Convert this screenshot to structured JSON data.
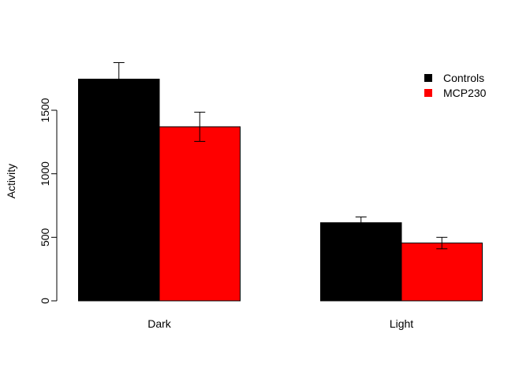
{
  "chart_data": {
    "type": "bar",
    "title": "",
    "xlabel": "",
    "ylabel": "Activity",
    "ylim": [
      0,
      1900
    ],
    "yticks": [
      0,
      500,
      1000,
      1500
    ],
    "categories": [
      "Dark",
      "Light"
    ],
    "series": [
      {
        "name": "Controls",
        "color": "#000000",
        "values": [
          1745,
          615
        ],
        "errors": [
          130,
          45
        ]
      },
      {
        "name": "MCP230",
        "color": "#ff0000",
        "values": [
          1370,
          455
        ],
        "errors": [
          115,
          45
        ]
      }
    ],
    "legend": "top-right",
    "grid": false
  }
}
